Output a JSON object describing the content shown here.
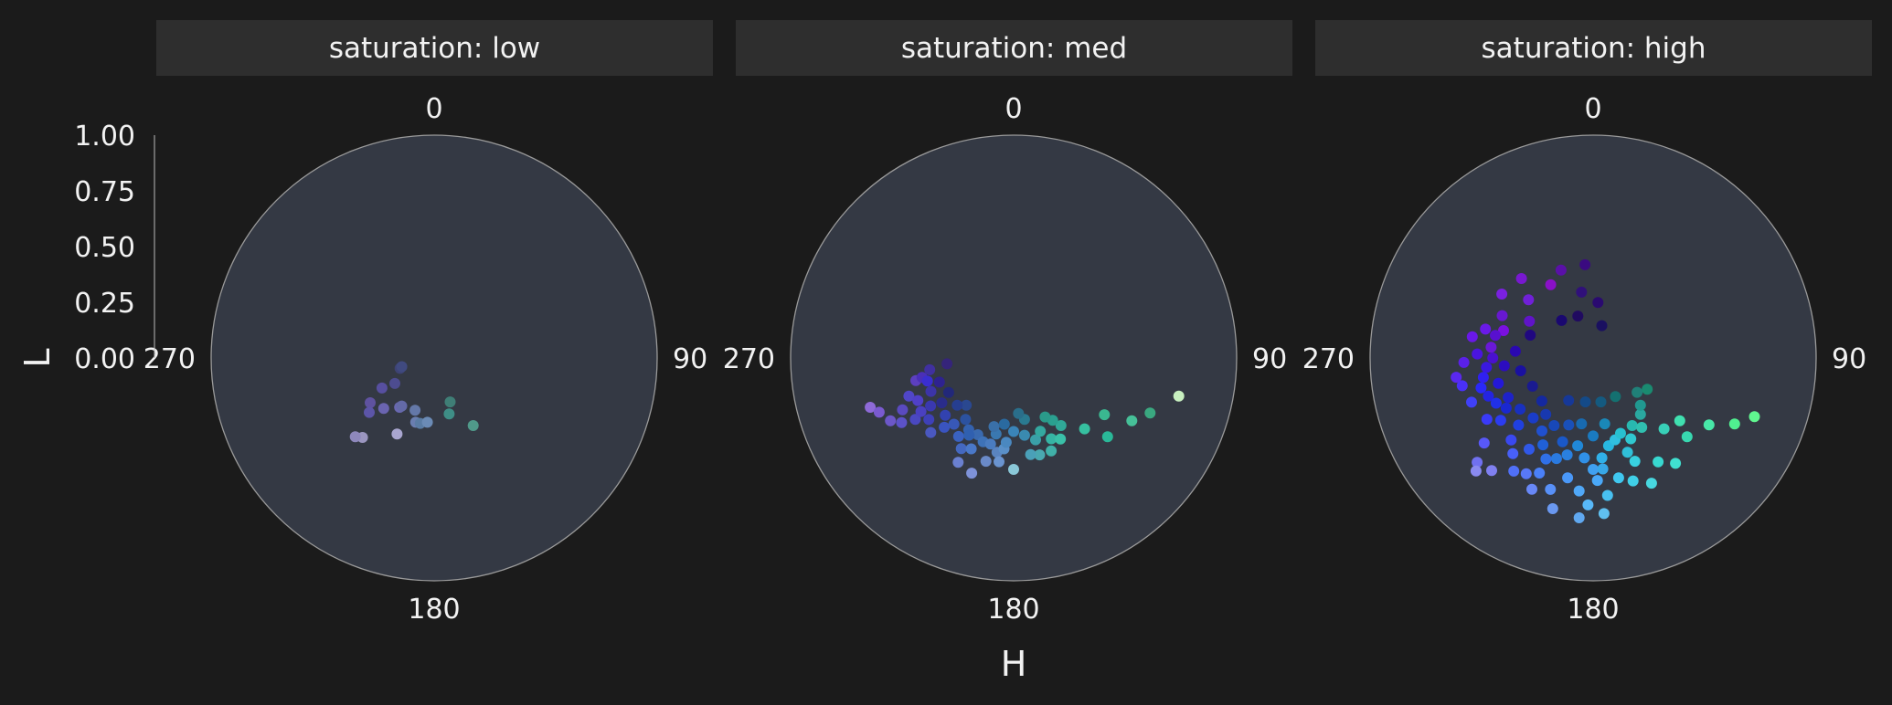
{
  "chart_data": {
    "type": "scatter",
    "coord": "polar",
    "x_label": "H",
    "y_label": "L",
    "radial_ticks": [
      "1.00",
      "0.75",
      "0.50",
      "0.25",
      "0.00"
    ],
    "angle_ticks": [
      "0",
      "90",
      "180",
      "270"
    ],
    "facets": [
      {
        "label": "saturation: low",
        "points": [
          {
            "h": 222,
            "l": 0.48,
            "color": "#9b96c0"
          },
          {
            "h": 225,
            "l": 0.5,
            "color": "#8e88bc"
          },
          {
            "h": 206,
            "l": 0.38,
            "color": "#a9a6d0"
          },
          {
            "h": 235,
            "l": 0.35,
            "color": "#5f52a0"
          },
          {
            "h": 230,
            "l": 0.38,
            "color": "#5c55a8"
          },
          {
            "h": 225,
            "l": 0.32,
            "color": "#6a64b0"
          },
          {
            "h": 240,
            "l": 0.27,
            "color": "#574fa0"
          },
          {
            "h": 237,
            "l": 0.21,
            "color": "#4d4c90"
          },
          {
            "h": 215,
            "l": 0.27,
            "color": "#6a68b2"
          },
          {
            "h": 214,
            "l": 0.26,
            "color": "#646aa8"
          },
          {
            "h": 253,
            "l": 0.16,
            "color": "#3e4374"
          },
          {
            "h": 255,
            "l": 0.15,
            "color": "#404a80"
          },
          {
            "h": 200,
            "l": 0.25,
            "color": "#6478a8"
          },
          {
            "h": 196,
            "l": 0.3,
            "color": "#6a7eb0"
          },
          {
            "h": 192,
            "l": 0.3,
            "color": "#5a7ca4"
          },
          {
            "h": 186,
            "l": 0.29,
            "color": "#6b8bb6"
          },
          {
            "h": 160,
            "l": 0.21,
            "color": "#3f7e76"
          },
          {
            "h": 165,
            "l": 0.26,
            "color": "#3e8e86"
          },
          {
            "h": 150,
            "l": 0.35,
            "color": "#509a8a"
          }
        ]
      },
      {
        "label": "saturation: med",
        "points": [
          {
            "h": 251,
            "l": 0.68,
            "color": "#8e6ad8"
          },
          {
            "h": 248,
            "l": 0.65,
            "color": "#7a5ad0"
          },
          {
            "h": 243,
            "l": 0.62,
            "color": "#6c57c8"
          },
          {
            "h": 257,
            "l": 0.45,
            "color": "#5c3fc0"
          },
          {
            "h": 258,
            "l": 0.42,
            "color": "#4a2fb8"
          },
          {
            "h": 262,
            "l": 0.38,
            "color": "#4030a0"
          },
          {
            "h": 265,
            "l": 0.3,
            "color": "#35247a"
          },
          {
            "h": 255,
            "l": 0.4,
            "color": "#3a2ed0"
          },
          {
            "h": 250,
            "l": 0.5,
            "color": "#5046c8"
          },
          {
            "h": 245,
            "l": 0.55,
            "color": "#5a4ac0"
          },
          {
            "h": 240,
            "l": 0.58,
            "color": "#5c52c8"
          },
          {
            "h": 238,
            "l": 0.52,
            "color": "#4a48c0"
          },
          {
            "h": 248,
            "l": 0.4,
            "color": "#3c34a8"
          },
          {
            "h": 240,
            "l": 0.43,
            "color": "#3a38b0"
          },
          {
            "h": 234,
            "l": 0.47,
            "color": "#3e40b8"
          },
          {
            "h": 238,
            "l": 0.38,
            "color": "#2a2c8a"
          },
          {
            "h": 242,
            "l": 0.33,
            "color": "#22287a"
          },
          {
            "h": 230,
            "l": 0.4,
            "color": "#3242b0"
          },
          {
            "h": 225,
            "l": 0.44,
            "color": "#3a54c0"
          },
          {
            "h": 228,
            "l": 0.5,
            "color": "#4a58c0"
          },
          {
            "h": 222,
            "l": 0.4,
            "color": "#3858b8"
          },
          {
            "h": 215,
            "l": 0.43,
            "color": "#3a62c0"
          },
          {
            "h": 210,
            "l": 0.47,
            "color": "#4468c0"
          },
          {
            "h": 212,
            "l": 0.38,
            "color": "#3462b0"
          },
          {
            "h": 218,
            "l": 0.35,
            "color": "#2c52a0"
          },
          {
            "h": 225,
            "l": 0.3,
            "color": "#2a4890"
          },
          {
            "h": 230,
            "l": 0.33,
            "color": "#263e90"
          },
          {
            "h": 205,
            "l": 0.38,
            "color": "#3a6ab0"
          },
          {
            "h": 200,
            "l": 0.4,
            "color": "#3e72b8"
          },
          {
            "h": 205,
            "l": 0.45,
            "color": "#4a78c8"
          },
          {
            "h": 208,
            "l": 0.53,
            "color": "#6a80d0"
          },
          {
            "h": 200,
            "l": 0.55,
            "color": "#7e92d8"
          },
          {
            "h": 195,
            "l": 0.48,
            "color": "#6a8ac8"
          },
          {
            "h": 190,
            "l": 0.43,
            "color": "#5a84c0"
          },
          {
            "h": 188,
            "l": 0.47,
            "color": "#6a94d0"
          },
          {
            "h": 186,
            "l": 0.41,
            "color": "#5a90c8"
          },
          {
            "h": 180,
            "l": 0.5,
            "color": "#8ac8d8"
          },
          {
            "h": 193,
            "l": 0.35,
            "color": "#3a78b0"
          },
          {
            "h": 196,
            "l": 0.32,
            "color": "#3a70a8"
          },
          {
            "h": 188,
            "l": 0.3,
            "color": "#2a6aa0"
          },
          {
            "h": 180,
            "l": 0.33,
            "color": "#3a84b8"
          },
          {
            "h": 172,
            "l": 0.35,
            "color": "#3a8ab0"
          },
          {
            "h": 165,
            "l": 0.38,
            "color": "#3aa0a8"
          },
          {
            "h": 160,
            "l": 0.35,
            "color": "#34a8a0"
          },
          {
            "h": 155,
            "l": 0.4,
            "color": "#36b4a4"
          },
          {
            "h": 150,
            "l": 0.42,
            "color": "#3ac0a8"
          },
          {
            "h": 158,
            "l": 0.45,
            "color": "#40b0a8"
          },
          {
            "h": 165,
            "l": 0.45,
            "color": "#4aa8b0"
          },
          {
            "h": 170,
            "l": 0.44,
            "color": "#4aa0b8"
          },
          {
            "h": 145,
            "l": 0.37,
            "color": "#30a898"
          },
          {
            "h": 148,
            "l": 0.33,
            "color": "#2aa090"
          },
          {
            "h": 152,
            "l": 0.3,
            "color": "#2a9a8a"
          },
          {
            "h": 170,
            "l": 0.28,
            "color": "#2a7a90"
          },
          {
            "h": 175,
            "l": 0.25,
            "color": "#2a6e8a"
          },
          {
            "h": 135,
            "l": 0.45,
            "color": "#36c0a0"
          },
          {
            "h": 130,
            "l": 0.55,
            "color": "#2ab898"
          },
          {
            "h": 122,
            "l": 0.48,
            "color": "#3ab890"
          },
          {
            "h": 118,
            "l": 0.6,
            "color": "#46c098"
          },
          {
            "h": 112,
            "l": 0.66,
            "color": "#3aa880"
          },
          {
            "h": 103,
            "l": 0.76,
            "color": "#c8f0c0"
          },
          {
            "h": 210,
            "l": 0.4,
            "color": "#3060b0"
          },
          {
            "h": 240,
            "l": 0.48,
            "color": "#4a40c0"
          },
          {
            "h": 246,
            "l": 0.47,
            "color": "#5040c8"
          },
          {
            "h": 252,
            "l": 0.35,
            "color": "#2e2290"
          },
          {
            "h": 185,
            "l": 0.38,
            "color": "#4a88c0"
          },
          {
            "h": 195,
            "l": 0.4,
            "color": "#4a7cc0"
          }
        ]
      },
      {
        "label": "saturation: high",
        "points": [
          {
            "h": 330,
            "l": 0.38,
            "color": "#8a10c8"
          },
          {
            "h": 312,
            "l": 0.39,
            "color": "#7020d8"
          },
          {
            "h": 300,
            "l": 0.33,
            "color": "#6014c8"
          },
          {
            "h": 287,
            "l": 0.42,
            "color": "#7a10e0"
          },
          {
            "h": 276,
            "l": 0.46,
            "color": "#6a18d8"
          },
          {
            "h": 283,
            "l": 0.45,
            "color": "#5810d0"
          },
          {
            "h": 270,
            "l": 0.45,
            "color": "#4a10d0"
          },
          {
            "h": 265,
            "l": 0.48,
            "color": "#3a18e0"
          },
          {
            "h": 260,
            "l": 0.5,
            "color": "#3020f0"
          },
          {
            "h": 255,
            "l": 0.52,
            "color": "#2a28f8"
          },
          {
            "h": 250,
            "l": 0.5,
            "color": "#2424e0"
          },
          {
            "h": 245,
            "l": 0.48,
            "color": "#2030e8"
          },
          {
            "h": 240,
            "l": 0.45,
            "color": "#1a28d0"
          },
          {
            "h": 235,
            "l": 0.4,
            "color": "#1830c0"
          },
          {
            "h": 228,
            "l": 0.45,
            "color": "#2040e0"
          },
          {
            "h": 225,
            "l": 0.52,
            "color": "#3a48f0"
          },
          {
            "h": 220,
            "l": 0.56,
            "color": "#4860f8"
          },
          {
            "h": 215,
            "l": 0.5,
            "color": "#3058e8"
          },
          {
            "h": 210,
            "l": 0.45,
            "color": "#2060d8"
          },
          {
            "h": 205,
            "l": 0.5,
            "color": "#3070e8"
          },
          {
            "h": 200,
            "l": 0.48,
            "color": "#2a7ae0"
          },
          {
            "h": 195,
            "l": 0.45,
            "color": "#2a80e0"
          },
          {
            "h": 190,
            "l": 0.4,
            "color": "#2088d8"
          },
          {
            "h": 185,
            "l": 0.45,
            "color": "#3090e8"
          },
          {
            "h": 180,
            "l": 0.5,
            "color": "#40a0f0"
          },
          {
            "h": 178,
            "l": 0.55,
            "color": "#4aa8f8"
          },
          {
            "h": 175,
            "l": 0.45,
            "color": "#30b0e8"
          },
          {
            "h": 170,
            "l": 0.4,
            "color": "#28b8e0"
          },
          {
            "h": 165,
            "l": 0.38,
            "color": "#30c0e0"
          },
          {
            "h": 160,
            "l": 0.36,
            "color": "#28c0d0"
          },
          {
            "h": 155,
            "l": 0.4,
            "color": "#30c8d0"
          },
          {
            "h": 150,
            "l": 0.35,
            "color": "#28b8b0"
          },
          {
            "h": 145,
            "l": 0.38,
            "color": "#30c0b0"
          },
          {
            "h": 140,
            "l": 0.33,
            "color": "#2aa8a0"
          },
          {
            "h": 135,
            "l": 0.45,
            "color": "#38d0b8"
          },
          {
            "h": 130,
            "l": 0.55,
            "color": "#38d8b0"
          },
          {
            "h": 126,
            "l": 0.48,
            "color": "#40e0b0"
          },
          {
            "h": 120,
            "l": 0.6,
            "color": "#48e8a8"
          },
          {
            "h": 115,
            "l": 0.7,
            "color": "#50f090"
          },
          {
            "h": 110,
            "l": 0.77,
            "color": "#60f890"
          },
          {
            "h": 135,
            "l": 0.3,
            "color": "#209890"
          },
          {
            "h": 128,
            "l": 0.25,
            "color": "#208078"
          },
          {
            "h": 120,
            "l": 0.28,
            "color": "#1a8a70"
          },
          {
            "h": 200,
            "l": 0.4,
            "color": "#1a58c8"
          },
          {
            "h": 210,
            "l": 0.35,
            "color": "#1848b8"
          },
          {
            "h": 220,
            "l": 0.33,
            "color": "#1838b0"
          },
          {
            "h": 230,
            "l": 0.3,
            "color": "#1428a0"
          },
          {
            "h": 245,
            "l": 0.3,
            "color": "#1a1a90"
          },
          {
            "h": 260,
            "l": 0.33,
            "color": "#1a10a0"
          },
          {
            "h": 275,
            "l": 0.35,
            "color": "#2a08b0"
          },
          {
            "h": 290,
            "l": 0.3,
            "color": "#200880"
          },
          {
            "h": 320,
            "l": 0.22,
            "color": "#1a0870"
          },
          {
            "h": 340,
            "l": 0.2,
            "color": "#200a60"
          },
          {
            "h": 350,
            "l": 0.3,
            "color": "#30107a"
          },
          {
            "h": 355,
            "l": 0.42,
            "color": "#3a0a80"
          },
          {
            "h": 5,
            "l": 0.25,
            "color": "#2a0a70"
          },
          {
            "h": 15,
            "l": 0.15,
            "color": "#1a1060"
          },
          {
            "h": 150,
            "l": 0.2,
            "color": "#147070"
          },
          {
            "h": 170,
            "l": 0.2,
            "color": "#145a80"
          },
          {
            "h": 190,
            "l": 0.2,
            "color": "#144a88"
          },
          {
            "h": 210,
            "l": 0.22,
            "color": "#163898"
          },
          {
            "h": 190,
            "l": 0.3,
            "color": "#186ab0"
          },
          {
            "h": 180,
            "l": 0.35,
            "color": "#1a7ac0"
          },
          {
            "h": 170,
            "l": 0.3,
            "color": "#1a88b8"
          },
          {
            "h": 240,
            "l": 0.55,
            "color": "#3a3af8"
          },
          {
            "h": 250,
            "l": 0.58,
            "color": "#4040f8"
          },
          {
            "h": 258,
            "l": 0.6,
            "color": "#4a30f8"
          },
          {
            "h": 262,
            "l": 0.62,
            "color": "#5a28f0"
          },
          {
            "h": 268,
            "l": 0.58,
            "color": "#5a20e8"
          },
          {
            "h": 272,
            "l": 0.52,
            "color": "#4a14e0"
          },
          {
            "h": 280,
            "l": 0.55,
            "color": "#6a18e8"
          },
          {
            "h": 232,
            "l": 0.62,
            "color": "#5858f8"
          },
          {
            "h": 228,
            "l": 0.7,
            "color": "#7070f0"
          },
          {
            "h": 222,
            "l": 0.68,
            "color": "#8080f0"
          },
          {
            "h": 226,
            "l": 0.73,
            "color": "#8a8af0"
          },
          {
            "h": 215,
            "l": 0.62,
            "color": "#5070f8"
          },
          {
            "h": 205,
            "l": 0.57,
            "color": "#4a80f8"
          },
          {
            "h": 198,
            "l": 0.62,
            "color": "#5890f8"
          },
          {
            "h": 192,
            "l": 0.55,
            "color": "#4a98f8"
          },
          {
            "h": 186,
            "l": 0.6,
            "color": "#50a8f8"
          },
          {
            "h": 182,
            "l": 0.66,
            "color": "#58b8f8"
          },
          {
            "h": 176,
            "l": 0.7,
            "color": "#60c0f0"
          },
          {
            "h": 174,
            "l": 0.62,
            "color": "#48c0f0"
          },
          {
            "h": 168,
            "l": 0.55,
            "color": "#40c8f0"
          },
          {
            "h": 162,
            "l": 0.58,
            "color": "#40d0e8"
          },
          {
            "h": 158,
            "l": 0.5,
            "color": "#38d0e0"
          },
          {
            "h": 155,
            "l": 0.62,
            "color": "#48d8e0"
          },
          {
            "h": 148,
            "l": 0.55,
            "color": "#38d8d0"
          },
          {
            "h": 142,
            "l": 0.6,
            "color": "#40e0d0"
          },
          {
            "h": 185,
            "l": 0.72,
            "color": "#60a8f0"
          },
          {
            "h": 195,
            "l": 0.7,
            "color": "#6a98f0"
          },
          {
            "h": 205,
            "l": 0.65,
            "color": "#6888f8"
          },
          {
            "h": 210,
            "l": 0.6,
            "color": "#5878f8"
          },
          {
            "h": 236,
            "l": 0.5,
            "color": "#2c3cf0"
          },
          {
            "h": 245,
            "l": 0.42,
            "color": "#1e22c8"
          },
          {
            "h": 255,
            "l": 0.44,
            "color": "#2418d8"
          },
          {
            "h": 265,
            "l": 0.4,
            "color": "#2c0cc0"
          },
          {
            "h": 285,
            "l": 0.5,
            "color": "#6a1ae8"
          },
          {
            "h": 295,
            "l": 0.45,
            "color": "#6818d0"
          },
          {
            "h": 305,
            "l": 0.5,
            "color": "#7a20e0"
          },
          {
            "h": 318,
            "l": 0.48,
            "color": "#7818d0"
          },
          {
            "h": 340,
            "l": 0.42,
            "color": "#5a10a8"
          },
          {
            "h": 200,
            "l": 0.32,
            "color": "#1a50b8"
          },
          {
            "h": 215,
            "l": 0.4,
            "color": "#2050d0"
          },
          {
            "h": 225,
            "l": 0.38,
            "color": "#1a3cc8"
          },
          {
            "h": 160,
            "l": 0.45,
            "color": "#30c0d8"
          },
          {
            "h": 175,
            "l": 0.5,
            "color": "#38a8e8"
          }
        ]
      }
    ]
  }
}
